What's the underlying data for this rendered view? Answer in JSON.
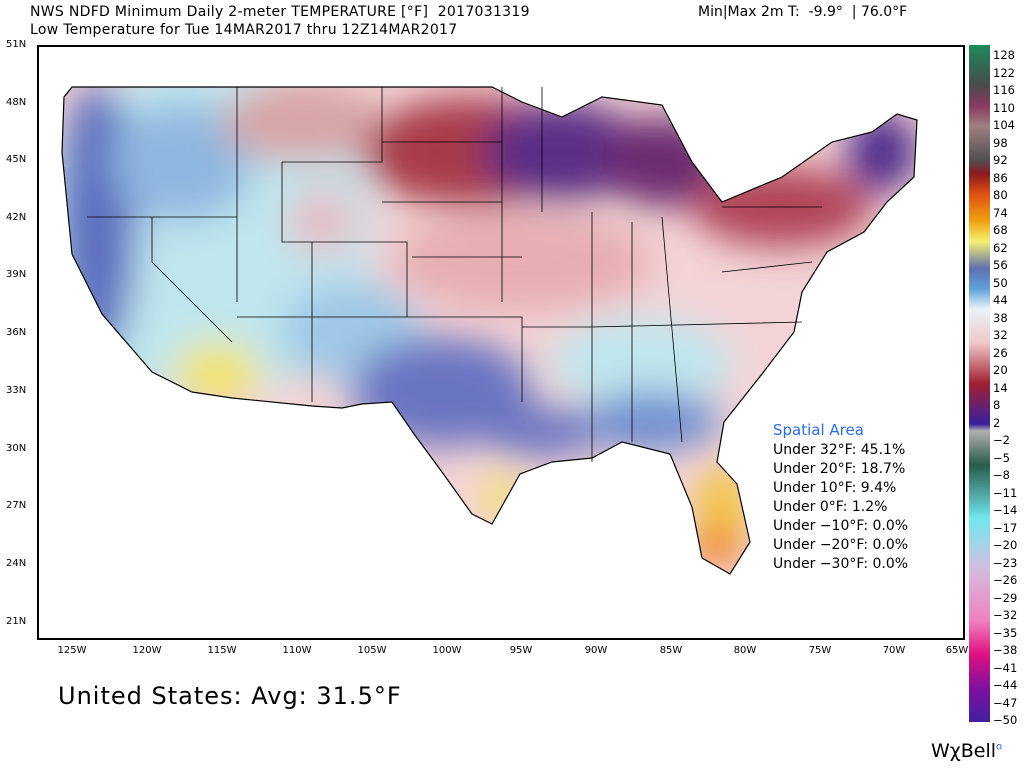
{
  "header": {
    "title": "NWS NDFD Minimum Daily 2-meter TEMPERATURE [°F]  2017031319",
    "minmax": "Min|Max 2m T:  -9.9°  | 76.0°F",
    "subtitle": "Low Temperature for Tue 14MAR2017 thru 12Z14MAR2017"
  },
  "map": {
    "region": "Contiguous United States",
    "lat_labels": [
      "51N",
      "48N",
      "45N",
      "42N",
      "39N",
      "36N",
      "33N",
      "30N",
      "27N",
      "24N",
      "21N"
    ],
    "lon_labels": [
      "125W",
      "120W",
      "115W",
      "110W",
      "105W",
      "100W",
      "95W",
      "90W",
      "85W",
      "80W",
      "75W",
      "70W",
      "65W"
    ]
  },
  "spatial_area": {
    "title": "Spatial Area",
    "rows": [
      "Under 32°F: 45.1%",
      "Under 20°F: 18.7%",
      "Under 10°F: 9.4%",
      "Under 0°F: 1.2%",
      "Under −10°F: 0.0%",
      "Under −20°F: 0.0%",
      "Under −30°F: 0.0%"
    ]
  },
  "colorbar": {
    "unit": "°F",
    "labels": [
      "128",
      "122",
      "116",
      "110",
      "104",
      "98",
      "92",
      "86",
      "80",
      "74",
      "68",
      "62",
      "56",
      "50",
      "44",
      "38",
      "32",
      "26",
      "20",
      "14",
      "8",
      "2",
      "−2",
      "−5",
      "−8",
      "−11",
      "−14",
      "−17",
      "−20",
      "−23",
      "−26",
      "−29",
      "−32",
      "−35",
      "−38",
      "−41",
      "−44",
      "−47",
      "−50"
    ]
  },
  "footer": {
    "average": "United States: Avg: 31.5°F",
    "logo": "WχBell"
  }
}
